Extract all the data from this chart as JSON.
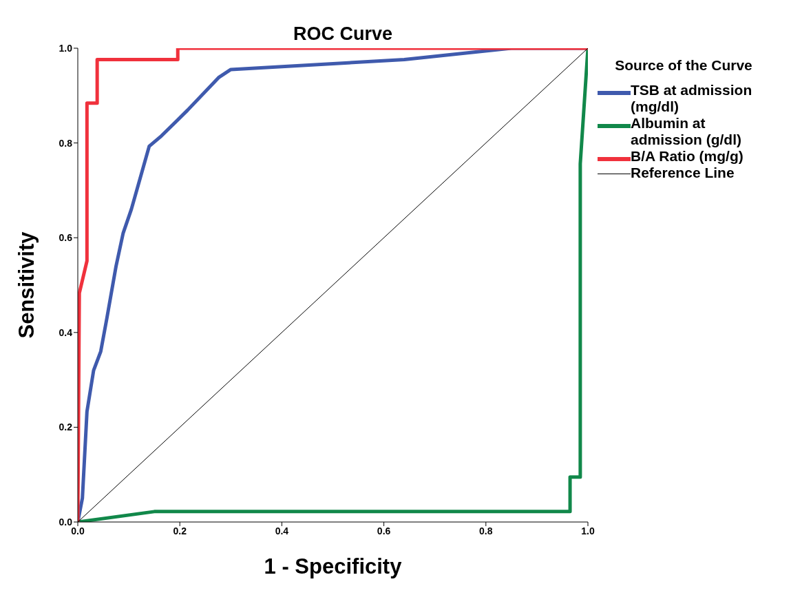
{
  "chart_data": {
    "type": "line",
    "title": "ROC Curve",
    "xlabel": "1 - Specificity",
    "ylabel": "Sensitivity",
    "legend_title": "Source of the Curve",
    "legend": "right",
    "marker": "none",
    "line_style": "solid",
    "xlim": [
      0,
      1
    ],
    "ylim": [
      0,
      1
    ],
    "xticks": [
      {
        "value": 0,
        "label": "0.0"
      },
      {
        "value": 0.2,
        "label": "0.2"
      },
      {
        "value": 0.4,
        "label": "0.4"
      },
      {
        "value": 0.6,
        "label": "0.6"
      },
      {
        "value": 0.8,
        "label": "0.8"
      },
      {
        "value": 1,
        "label": "1.0"
      }
    ],
    "yticks": [
      {
        "value": 0,
        "label": "0.0"
      },
      {
        "value": 0.2,
        "label": "0.2"
      },
      {
        "value": 0.4,
        "label": "0.4"
      },
      {
        "value": 0.6,
        "label": "0.6"
      },
      {
        "value": 0.8,
        "label": "0.8"
      },
      {
        "value": 1,
        "label": "1.0"
      }
    ],
    "series": [
      {
        "name": "TSB at admission (mg/dl)",
        "color": "#3f5aad",
        "x": [
          0,
          0.009,
          0.018,
          0.031,
          0.045,
          0.057,
          0.075,
          0.089,
          0.105,
          0.14,
          0.164,
          0.215,
          0.276,
          0.3,
          0.64,
          0.85,
          1
        ],
        "values": [
          0,
          0.05,
          0.233,
          0.32,
          0.36,
          0.43,
          0.54,
          0.61,
          0.66,
          0.793,
          0.815,
          0.869,
          0.938,
          0.955,
          0.976,
          1,
          1
        ]
      },
      {
        "name": "Albumin at admission (g/dl)",
        "color": "#11884a",
        "x": [
          0,
          0.15,
          0.965,
          0.965,
          0.985,
          0.985,
          1
        ],
        "values": [
          0,
          0.022,
          0.022,
          0.095,
          0.095,
          0.756,
          1
        ]
      },
      {
        "name": "B/A Ratio (mg/g)",
        "color": "#f0313c",
        "x": [
          0,
          0.003,
          0.018,
          0.018,
          0.038,
          0.038,
          0.196,
          0.196,
          1
        ],
        "values": [
          0,
          0.483,
          0.551,
          0.884,
          0.884,
          0.976,
          0.976,
          1,
          1
        ]
      },
      {
        "name": "Reference Line",
        "color": "#000000",
        "x": [
          0,
          1
        ],
        "values": [
          0,
          1
        ]
      }
    ]
  }
}
